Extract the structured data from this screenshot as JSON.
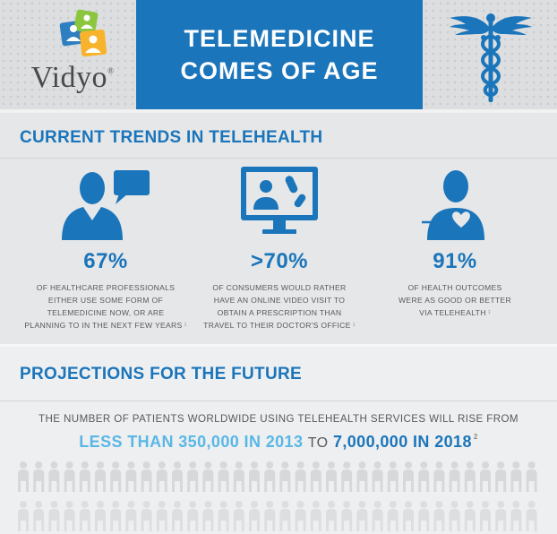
{
  "header": {
    "logo_text": "Vidyo",
    "logo_mark": "®",
    "title_line1": "TELEMEDICINE",
    "title_line2": "COMES OF AGE",
    "caduceus_icon": "caduceus-icon"
  },
  "trends": {
    "title": "CURRENT TRENDS IN TELEHEALTH",
    "stats": [
      {
        "icon": "professional-chat-icon",
        "value": "67%",
        "lines": [
          "OF HEALTHCARE PROFESSIONALS",
          "EITHER USE SOME FORM OF",
          "TELEMEDICINE NOW, OR ARE",
          "PLANNING TO IN THE NEXT FEW YEARS"
        ],
        "footnote": "1"
      },
      {
        "icon": "video-visit-monitor-icon",
        "value": ">70%",
        "lines": [
          "OF CONSUMERS  WOULD RATHER",
          "HAVE AN ONLINE VIDEO VISIT TO",
          "OBTAIN A PRESCRIPTION THAN",
          "TRAVEL TO THEIR DOCTOR'S OFFICE"
        ],
        "footnote": "1"
      },
      {
        "icon": "patient-heart-icon",
        "value": "91%",
        "lines": [
          "OF HEALTH OUTCOMES",
          "WERE AS GOOD OR BETTER",
          "VIA TELEHEALTH"
        ],
        "footnote": "1"
      }
    ]
  },
  "projections": {
    "title": "PROJECTIONS FOR THE FUTURE",
    "line1": "THE NUMBER OF PATIENTS WORLDWIDE USING TELEHEALTH SERVICES WILL RISE FROM",
    "from_text": "LESS THAN 350,000 IN 2013",
    "to_word": "TO",
    "to_text": "7,000,000 IN 2018",
    "footnote": "2"
  },
  "colors": {
    "brand_blue": "#1b75bb",
    "light_blue": "#59b7e6",
    "text_gray": "#58595b"
  }
}
